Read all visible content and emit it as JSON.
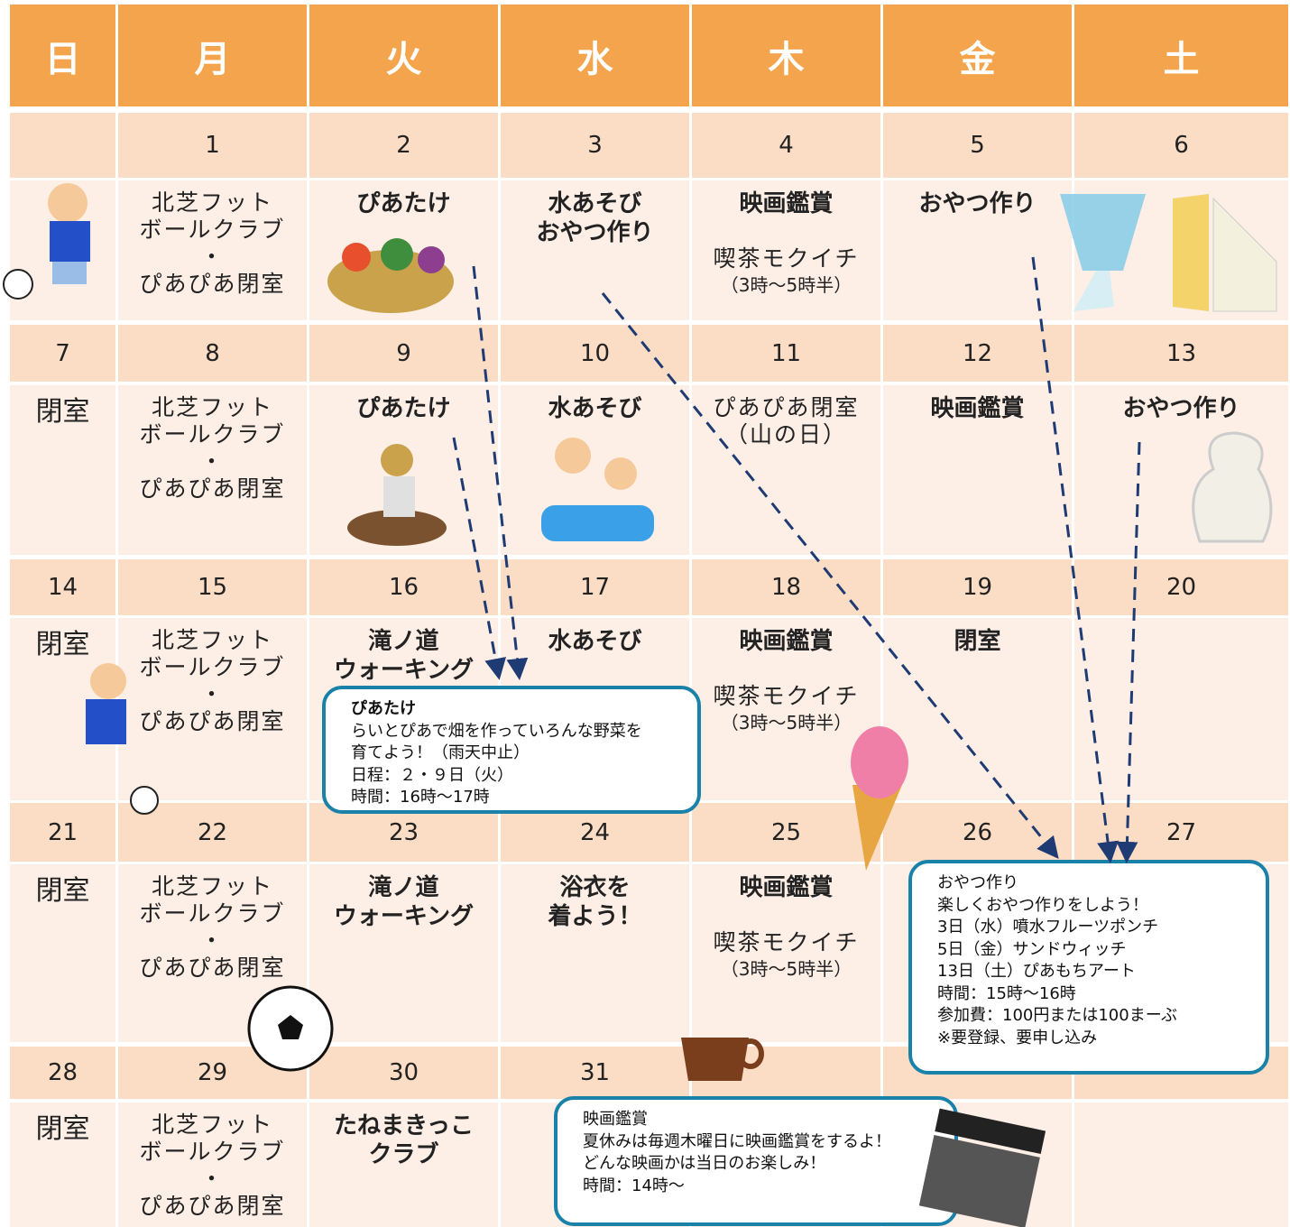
{
  "weekdays": [
    "日",
    "月",
    "火",
    "水",
    "木",
    "金",
    "土"
  ],
  "weeks": [
    {
      "dates": [
        null,
        1,
        2,
        3,
        4,
        5,
        6
      ],
      "cells": [
        null,
        [
          {
            "text": "北芝フット",
            "style": "normal"
          },
          {
            "text": "ボールクラブ",
            "style": "normal"
          },
          {
            "text": "・",
            "style": "normal"
          },
          {
            "text": "ぴあぴあ閉室",
            "style": "normal"
          }
        ],
        [
          {
            "text": "ぴあたけ",
            "style": "bold"
          }
        ],
        [
          {
            "text": "水あそび",
            "style": "bold"
          },
          {
            "text": "おやつ作り",
            "style": "bold"
          }
        ],
        [
          {
            "text": "映画鑑賞",
            "style": "bold"
          },
          {
            "text": "喫茶モクイチ",
            "style": "normal"
          },
          {
            "text": "（3時～5時半）",
            "style": "small"
          }
        ],
        [
          {
            "text": "おやつ作り",
            "style": "bold"
          }
        ],
        null
      ]
    },
    {
      "dates": [
        7,
        8,
        9,
        10,
        11,
        12,
        13
      ],
      "cells": [
        [
          {
            "text": "閉室",
            "style": "large"
          }
        ],
        [
          {
            "text": "北芝フット",
            "style": "normal"
          },
          {
            "text": "ボールクラブ",
            "style": "normal"
          },
          {
            "text": "・",
            "style": "normal"
          },
          {
            "text": "ぴあぴあ閉室",
            "style": "normal"
          }
        ],
        [
          {
            "text": "ぴあたけ",
            "style": "bold"
          }
        ],
        [
          {
            "text": "水あそび",
            "style": "bold"
          }
        ],
        [
          {
            "text": "ぴあぴあ閉室",
            "style": "normal"
          },
          {
            "text": "（山の日）",
            "style": "normal"
          }
        ],
        [
          {
            "text": "映画鑑賞",
            "style": "bold"
          }
        ],
        [
          {
            "text": "おやつ作り",
            "style": "bold"
          }
        ]
      ]
    },
    {
      "dates": [
        14,
        15,
        16,
        17,
        18,
        19,
        20
      ],
      "cells": [
        [
          {
            "text": "閉室",
            "style": "large"
          }
        ],
        [
          {
            "text": "北芝フット",
            "style": "normal"
          },
          {
            "text": "ボールクラブ",
            "style": "normal"
          },
          {
            "text": "・",
            "style": "normal"
          },
          {
            "text": "ぴあぴあ閉室",
            "style": "normal"
          }
        ],
        [
          {
            "text": "滝ノ道",
            "style": "bold"
          },
          {
            "text": "ウォーキング",
            "style": "bold"
          }
        ],
        [
          {
            "text": "水あそび",
            "style": "bold"
          }
        ],
        [
          {
            "text": "映画鑑賞",
            "style": "bold"
          },
          {
            "text": "喫茶モクイチ",
            "style": "normal"
          },
          {
            "text": "（3時～5時半）",
            "style": "small"
          }
        ],
        [
          {
            "text": "閉室",
            "style": "bold"
          }
        ],
        null
      ]
    },
    {
      "dates": [
        21,
        22,
        23,
        24,
        25,
        26,
        27
      ],
      "cells": [
        [
          {
            "text": "閉室",
            "style": "large"
          }
        ],
        [
          {
            "text": "北芝フット",
            "style": "normal"
          },
          {
            "text": "ボールクラブ",
            "style": "normal"
          },
          {
            "text": "・",
            "style": "normal"
          },
          {
            "text": "ぴあぴあ閉室",
            "style": "normal"
          }
        ],
        [
          {
            "text": "滝ノ道",
            "style": "bold"
          },
          {
            "text": "ウォーキング",
            "style": "bold"
          }
        ],
        [
          {
            "text": "浴衣を",
            "style": "bold"
          },
          {
            "text": "着よう！",
            "style": "bold"
          }
        ],
        [
          {
            "text": "映画鑑賞",
            "style": "bold"
          },
          {
            "text": "喫茶モクイチ",
            "style": "normal"
          },
          {
            "text": "（3時～5時半）",
            "style": "small"
          }
        ],
        null,
        null
      ]
    },
    {
      "dates": [
        28,
        29,
        30,
        31,
        null,
        null,
        null
      ],
      "cells": [
        [
          {
            "text": "閉室",
            "style": "large"
          }
        ],
        [
          {
            "text": "北芝フット",
            "style": "normal"
          },
          {
            "text": "ボールクラブ",
            "style": "normal"
          },
          {
            "text": "・",
            "style": "normal"
          },
          {
            "text": "ぴあぴあ閉室",
            "style": "normal"
          }
        ],
        [
          {
            "text": "たねまきっこ",
            "style": "bold"
          },
          {
            "text": "クラブ",
            "style": "bold"
          }
        ],
        null,
        null,
        null,
        null
      ]
    }
  ],
  "callouts": [
    {
      "title": "ぴあたけ",
      "lines": [
        "らいとぴあで畑を作っていろんな野菜を",
        "育てよう！（雨天中止）",
        "日程：２・９日（火）",
        "時間：16時～17時"
      ]
    },
    {
      "title": "おやつ作り",
      "lines": [
        "楽しくおやつ作りをしよう！",
        "3日（水）噴水フルーツポンチ",
        "5日（金）サンドウィッチ",
        "13日（土）ぴあもちアート",
        "時間：15時～16時",
        "参加費：100円または100まーぶ",
        "※要登録、要申し込み"
      ]
    },
    {
      "title": "映画鑑賞",
      "lines": [
        "夏休みは毎週木曜日に映画鑑賞をするよ！",
        "どんな映画かは当日のお楽しみ！",
        "時間：14時～"
      ]
    }
  ]
}
